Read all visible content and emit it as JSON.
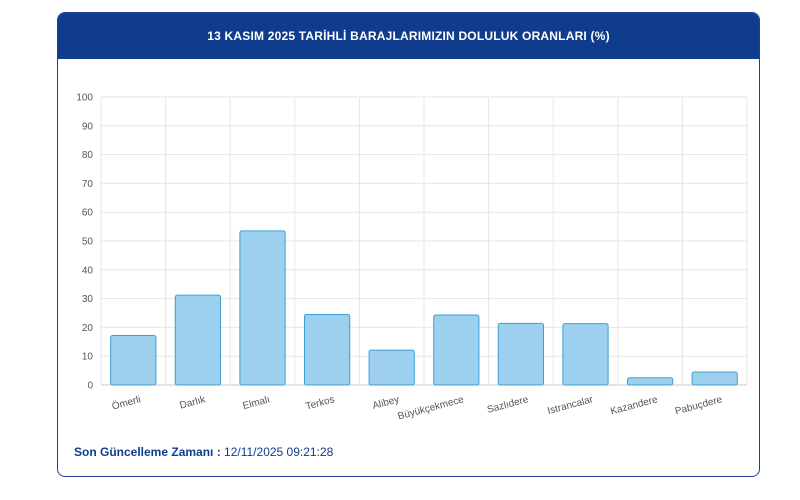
{
  "header": {
    "title": "13 KASIM 2025 TARİHLİ BARAJLARIMIZIN DOLULUK ORANLARI (%)"
  },
  "footer": {
    "label": "Son Güncelleme Zamanı :",
    "value": "12/11/2025 09:21:28"
  },
  "chart_data": {
    "type": "bar",
    "title": "13 KASIM 2025 TARİHLİ BARAJLARIMIZIN DOLULUK ORANLARI (%)",
    "xlabel": "",
    "ylabel": "",
    "ylim": [
      0,
      100
    ],
    "yticks": [
      "0",
      "10",
      "20",
      "30",
      "40",
      "50",
      "60",
      "70",
      "80",
      "90",
      "100"
    ],
    "categories": [
      "Ömerli",
      "Darlık",
      "Elmalı",
      "Terkos",
      "Alibey",
      "Büyükçekmece",
      "Sazlıdere",
      "Istrancalar",
      "Kazandere",
      "Pabuçdere"
    ],
    "values": [
      17.2,
      31.2,
      53.5,
      24.5,
      12.1,
      24.3,
      21.4,
      21.3,
      2.5,
      4.5
    ],
    "grid": true,
    "bar_color": "#9dd0ee",
    "bar_border_color": "#3f9fd3"
  }
}
